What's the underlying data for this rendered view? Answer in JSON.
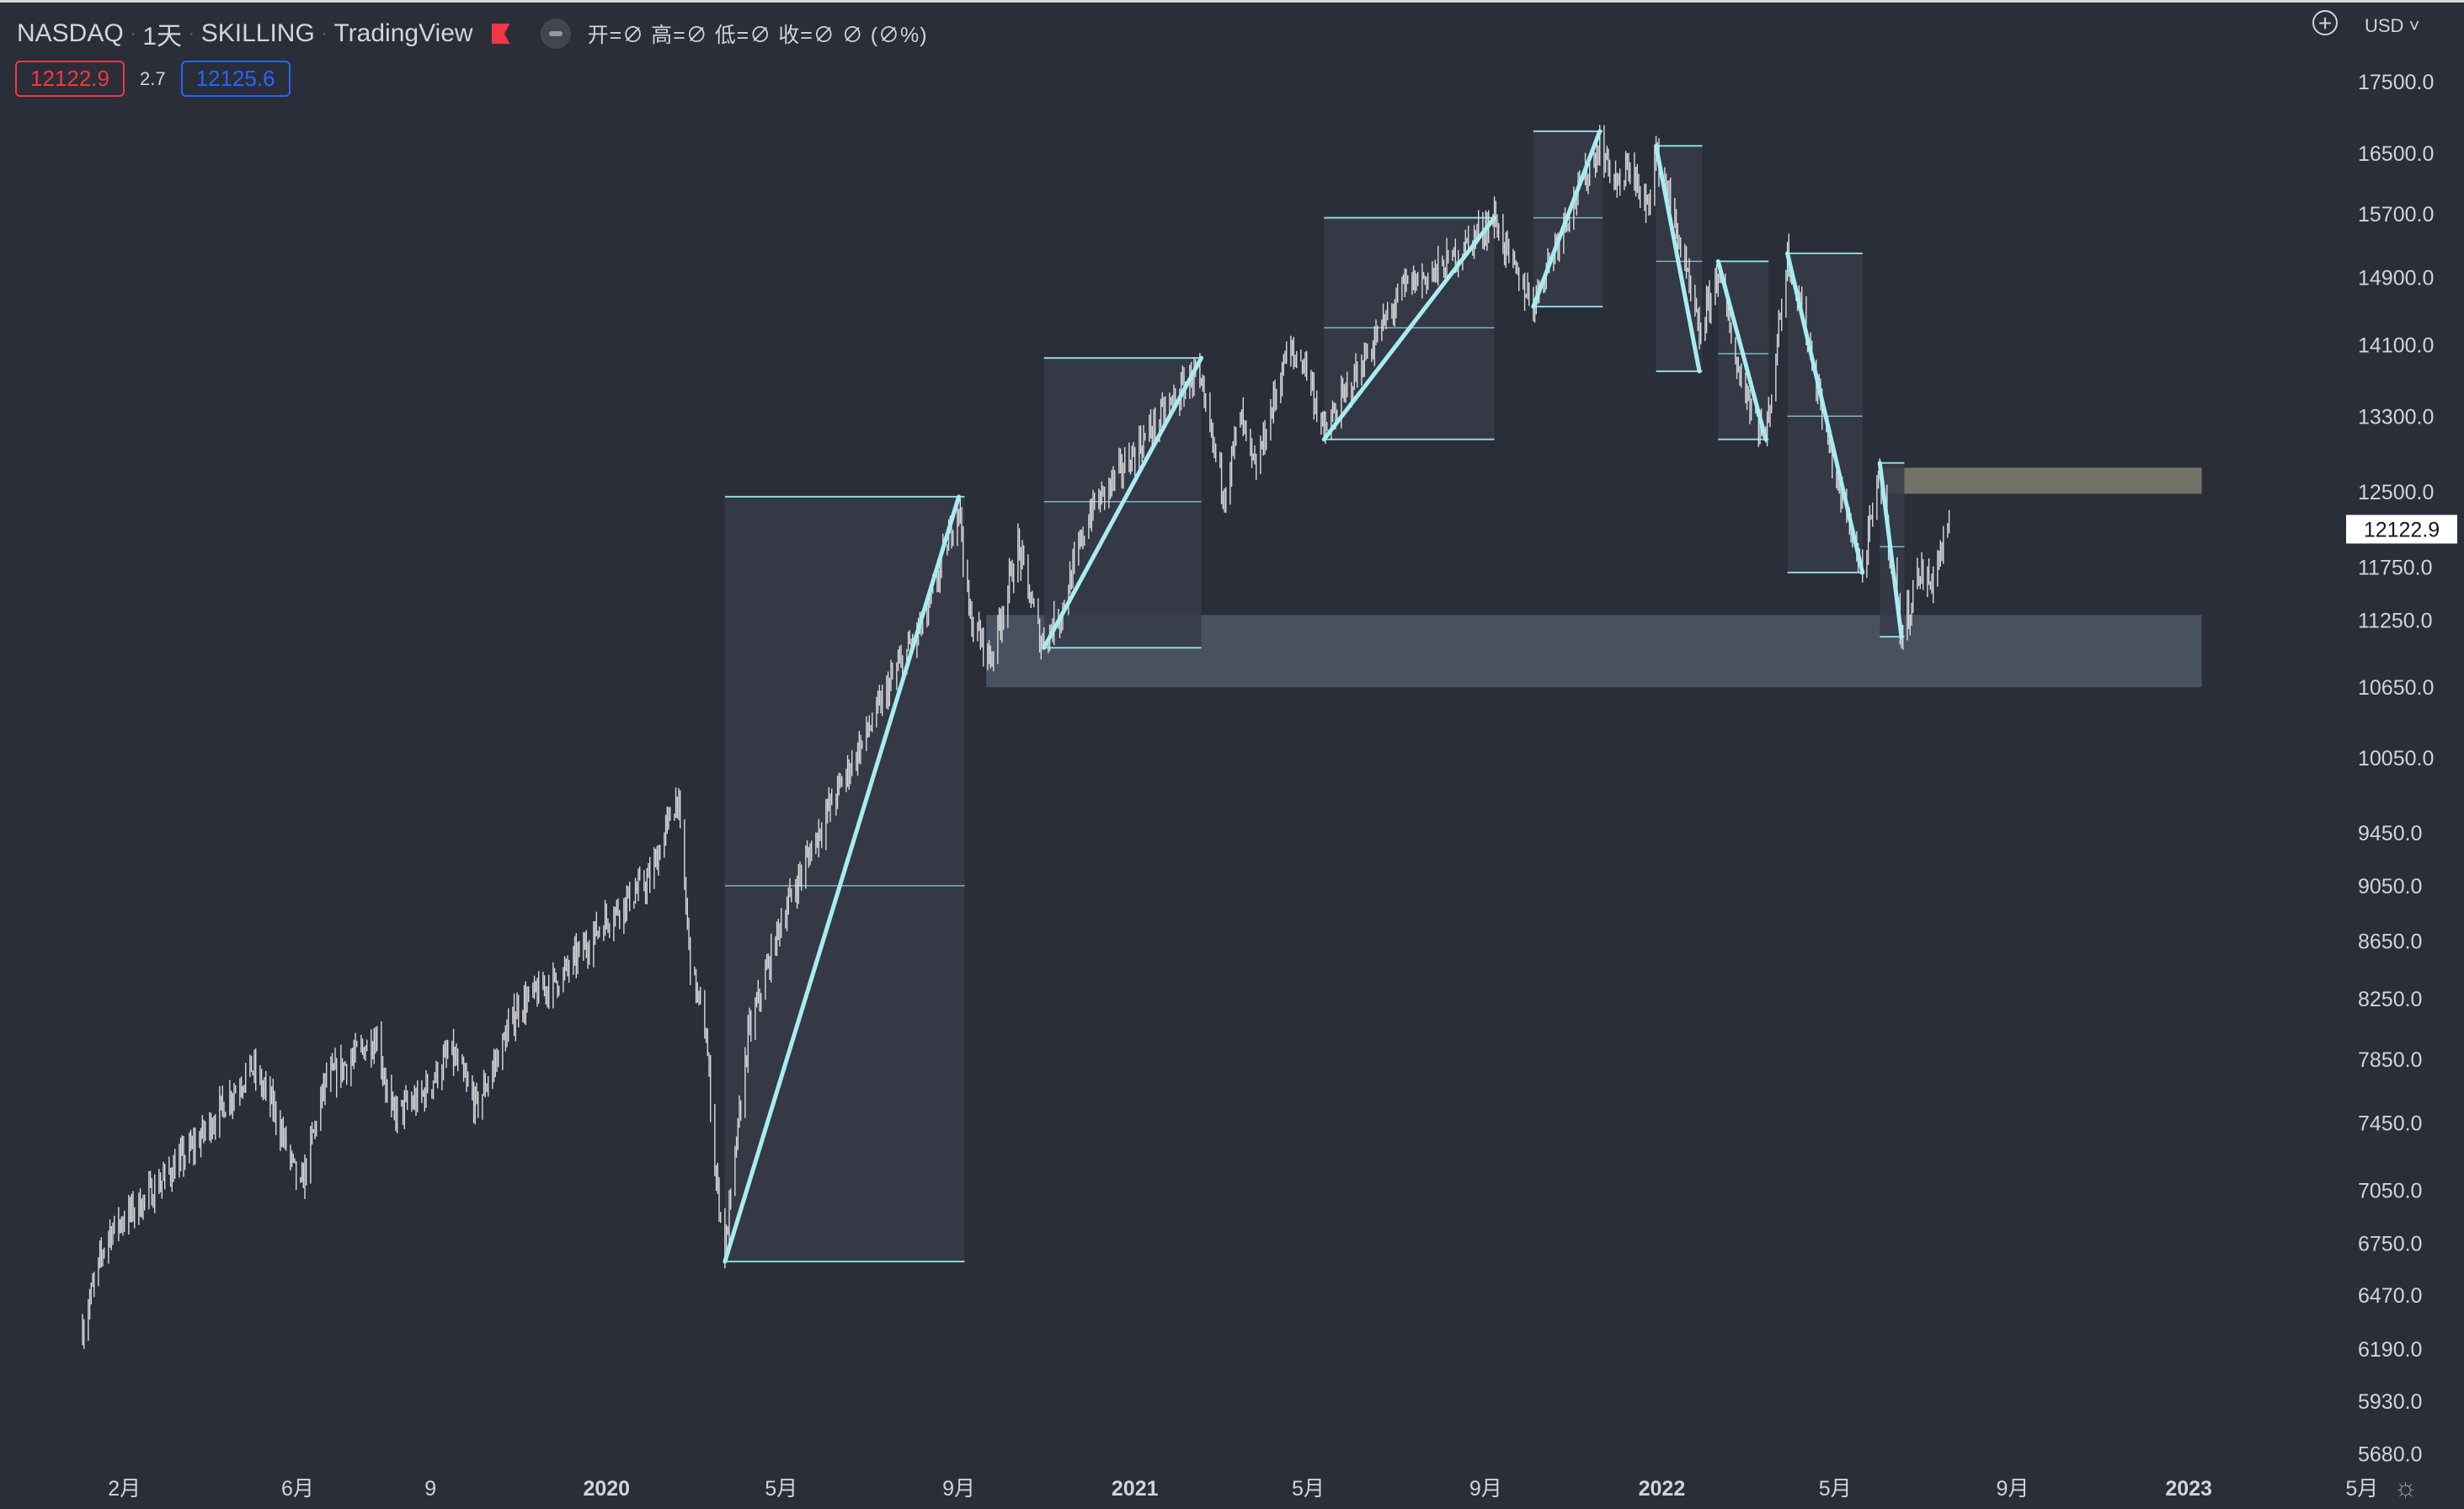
{
  "legend": {
    "symbol": "NASDAQ",
    "interval": "1天",
    "exchange": "SKILLING",
    "platform": "TradingView",
    "ohlc": "开=∅ 高=∅ 低=∅ 收=∅ ∅ (∅%)"
  },
  "prices": {
    "bid": "12122.9",
    "spread": "2.7",
    "ask": "12125.6"
  },
  "currency": "USD",
  "chart_data": {
    "type": "candlestick",
    "symbol": "NASDAQ",
    "interval": "1天",
    "current_price": 12122.9,
    "price_label": "12122.9",
    "y_scale": "log",
    "ylim": [
      5550,
      18200
    ],
    "y_ticks": [
      17500,
      16500,
      15700,
      14900,
      14100,
      13300,
      12500,
      11750,
      11250,
      10650,
      10050,
      9450,
      9050,
      8650,
      8250,
      7850,
      7450,
      7050,
      6750,
      6470,
      6190,
      5930,
      5680
    ],
    "y_tick_labels": [
      "17500.0",
      "16500.0",
      "15700.0",
      "14900.0",
      "14100.0",
      "13300.0",
      "12500.0",
      "11750.0",
      "11250.0",
      "10650.0",
      "10050.0",
      "9450.0",
      "9050.0",
      "8650.0",
      "8250.0",
      "7850.0",
      "7450.0",
      "7050.0",
      "6750.0",
      "6470.0",
      "6190.0",
      "5930.0",
      "5680.0"
    ],
    "x_range": [
      "2019-01-03",
      "2023-06-15"
    ],
    "x_ticks": [
      {
        "date": "2019-02-01",
        "label": "2月",
        "major": false
      },
      {
        "date": "2019-06-01",
        "label": "6月",
        "major": false
      },
      {
        "date": "2019-09-01",
        "label": "9",
        "major": false
      },
      {
        "date": "2020-01-01",
        "label": "2020",
        "major": true
      },
      {
        "date": "2020-05-01",
        "label": "5月",
        "major": false
      },
      {
        "date": "2020-09-01",
        "label": "9月",
        "major": false
      },
      {
        "date": "2021-01-01",
        "label": "2021",
        "major": true
      },
      {
        "date": "2021-05-01",
        "label": "5月",
        "major": false
      },
      {
        "date": "2021-09-01",
        "label": "9月",
        "major": false
      },
      {
        "date": "2022-01-01",
        "label": "2022",
        "major": true
      },
      {
        "date": "2022-05-01",
        "label": "5月",
        "major": false
      },
      {
        "date": "2022-09-01",
        "label": "9月",
        "major": false
      },
      {
        "date": "2023-01-01",
        "label": "2023",
        "major": true
      },
      {
        "date": "2023-05-01",
        "label": "5月",
        "major": false
      }
    ],
    "price_path": [
      [
        "2019-01-03",
        6300
      ],
      [
        "2019-01-20",
        6800
      ],
      [
        "2019-02-15",
        7000
      ],
      [
        "2019-03-20",
        7300
      ],
      [
        "2019-04-30",
        7800
      ],
      [
        "2019-05-15",
        7550
      ],
      [
        "2019-06-03",
        7050
      ],
      [
        "2019-06-20",
        7700
      ],
      [
        "2019-07-26",
        8000
      ],
      [
        "2019-08-05",
        7500
      ],
      [
        "2019-08-25",
        7600
      ],
      [
        "2019-09-15",
        7900
      ],
      [
        "2019-10-03",
        7550
      ],
      [
        "2019-11-01",
        8200
      ],
      [
        "2019-12-01",
        8400
      ],
      [
        "2019-12-31",
        8800
      ],
      [
        "2020-01-31",
        9100
      ],
      [
        "2020-02-19",
        9750
      ],
      [
        "2020-02-28",
        8500
      ],
      [
        "2020-03-10",
        8000
      ],
      [
        "2020-03-16",
        7200
      ],
      [
        "2020-03-23",
        6700
      ],
      [
        "2020-04-08",
        8000
      ],
      [
        "2020-05-01",
        8800
      ],
      [
        "2020-06-01",
        9600
      ],
      [
        "2020-07-01",
        10300
      ],
      [
        "2020-07-20",
        10800
      ],
      [
        "2020-08-10",
        11300
      ],
      [
        "2020-09-01",
        12400
      ],
      [
        "2020-09-08",
        11300
      ],
      [
        "2020-09-23",
        10900
      ],
      [
        "2020-10-12",
        11950
      ],
      [
        "2020-10-28",
        11050
      ],
      [
        "2020-11-10",
        11300
      ],
      [
        "2020-12-01",
        12300
      ],
      [
        "2020-12-31",
        12900
      ],
      [
        "2021-02-12",
        13800
      ],
      [
        "2021-03-04",
        12500
      ],
      [
        "2021-03-15",
        13300
      ],
      [
        "2021-03-25",
        12700
      ],
      [
        "2021-04-16",
        14000
      ],
      [
        "2021-04-29",
        13900
      ],
      [
        "2021-05-12",
        13100
      ],
      [
        "2021-06-01",
        13700
      ],
      [
        "2021-07-07",
        14800
      ],
      [
        "2021-08-01",
        15000
      ],
      [
        "2021-09-07",
        15650
      ],
      [
        "2021-09-20",
        15000
      ],
      [
        "2021-10-04",
        14600
      ],
      [
        "2021-10-25",
        15600
      ],
      [
        "2021-11-19",
        16600
      ],
      [
        "2021-12-03",
        16000
      ],
      [
        "2021-12-10",
        16400
      ],
      [
        "2021-12-20",
        15700
      ],
      [
        "2021-12-28",
        16500
      ],
      [
        "2022-01-10",
        15600
      ],
      [
        "2022-01-27",
        14200
      ],
      [
        "2022-02-09",
        15000
      ],
      [
        "2022-02-23",
        13800
      ],
      [
        "2022-03-14",
        13050
      ],
      [
        "2022-03-29",
        15200
      ],
      [
        "2022-04-12",
        14200
      ],
      [
        "2022-04-29",
        12800
      ],
      [
        "2022-05-20",
        11700
      ],
      [
        "2022-06-01",
        12700
      ],
      [
        "2022-06-16",
        11100
      ],
      [
        "2022-06-28",
        11700
      ],
      [
        "2022-07-06",
        11600
      ],
      [
        "2022-07-20",
        12200
      ]
    ],
    "trend_lines": [
      {
        "from": [
          "2020-03-23",
          6650
        ],
        "to": [
          "2020-09-01",
          12450
        ]
      },
      {
        "from": [
          "2020-10-30",
          11000
        ],
        "to": [
          "2021-02-16",
          13950
        ]
      },
      {
        "from": [
          "2021-05-12",
          13050
        ],
        "to": [
          "2021-09-07",
          15650
        ]
      },
      {
        "from": [
          "2021-10-04",
          14550
        ],
        "to": [
          "2021-11-19",
          16800
        ]
      },
      {
        "from": [
          "2021-12-28",
          16600
        ],
        "to": [
          "2022-01-27",
          13800
        ]
      },
      {
        "from": [
          "2022-02-09",
          15100
        ],
        "to": [
          "2022-03-14",
          13050
        ]
      },
      {
        "from": [
          "2022-03-29",
          15200
        ],
        "to": [
          "2022-05-20",
          11700
        ]
      },
      {
        "from": [
          "2022-06-01",
          12800
        ],
        "to": [
          "2022-06-16",
          11100
        ]
      }
    ],
    "range_boxes": [
      {
        "start": "2020-03-23",
        "end": "2020-09-05",
        "high": 12450,
        "low": 6650,
        "mid": 9050
      },
      {
        "start": "2020-10-30",
        "end": "2021-02-16",
        "high": 13950,
        "low": 11000,
        "mid": 12400
      },
      {
        "start": "2021-05-12",
        "end": "2021-09-07",
        "high": 15650,
        "low": 13050,
        "mid": 14300
      },
      {
        "start": "2021-10-04",
        "end": "2021-11-21",
        "high": 16800,
        "low": 14550,
        "mid": 15650
      },
      {
        "start": "2021-12-28",
        "end": "2022-01-29",
        "high": 16600,
        "low": 13800,
        "mid": 15100
      },
      {
        "start": "2022-02-09",
        "end": "2022-03-16",
        "high": 15100,
        "low": 13050,
        "mid": 14000
      },
      {
        "start": "2022-03-29",
        "end": "2022-05-20",
        "high": 15200,
        "low": 11700,
        "mid": 13300
      },
      {
        "start": "2022-06-01",
        "end": "2022-06-18",
        "high": 12800,
        "low": 11100,
        "mid": 11950
      }
    ],
    "support_zone": {
      "start": "2020-09-20",
      "end": "2023-01-10",
      "top": 11300,
      "bottom": 10650
    },
    "resistance_zone": {
      "start": "2022-06-01",
      "end": "2023-01-10",
      "top": 12750,
      "bottom": 12480
    }
  },
  "colors": {
    "background": "#2a2e39",
    "candle": "#d8d9dc",
    "trend": "#a8ecf2",
    "box_fill": "#363b48",
    "box_line": "#8fd8e0",
    "support": "#4a5361",
    "resistance": "#767669",
    "text": "#d1d4dc"
  },
  "icons": {
    "alert": "flag-icon",
    "visibility": "eye-icon",
    "add": "plus-circle-icon",
    "settings": "gear-icon"
  }
}
